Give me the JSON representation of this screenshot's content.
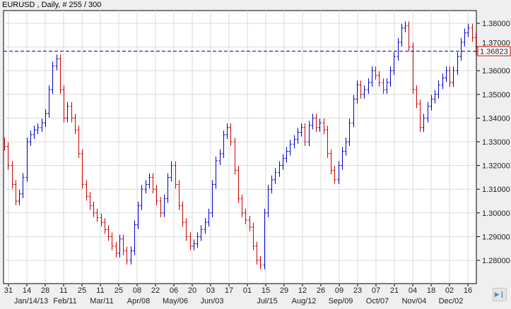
{
  "title": "EURUSD , Daily, # 255 / 300",
  "colors": {
    "up": "#0000cc",
    "down": "#cc0000",
    "current_line": "#0000aa",
    "grid": "#d8d8d8",
    "price_box_border": "#cc0000"
  },
  "nav_button_icon": "skip-to-end-icon",
  "chart_data": {
    "type": "ohlc",
    "symbol": "EURUSD",
    "timeframe": "Daily",
    "ylim": [
      1.272,
      1.384
    ],
    "y_ticks": [
      "1.38000",
      "1.37000",
      "1.36000",
      "1.35000",
      "1.34000",
      "1.33000",
      "1.32000",
      "1.31000",
      "1.30000",
      "1.29000",
      "1.28000"
    ],
    "y_tick_values": [
      1.38,
      1.37,
      1.36,
      1.35,
      1.34,
      1.33,
      1.32,
      1.31,
      1.3,
      1.29,
      1.28
    ],
    "x_ticks_top": [
      "31",
      "14",
      "28",
      "11",
      "25",
      "11",
      "25",
      "08",
      "22",
      "06",
      "20",
      "03",
      "17",
      "01",
      "15",
      "29",
      "12",
      "26",
      "09",
      "23",
      "07",
      "21",
      "04",
      "18",
      "02",
      "16"
    ],
    "x_ticks_bottom": [
      "Jan/14/13",
      "Feb/11",
      "Mar/11",
      "Apr/08",
      "May/06",
      "Jun/03",
      "Jul/15",
      "Aug/12",
      "Sep/09",
      "Oct/07",
      "Nov/04",
      "Dec/02"
    ],
    "current_price": 1.36823,
    "current_price_label": "1.36823",
    "grid": true,
    "closes": [
      1.328,
      1.32,
      1.312,
      1.305,
      1.308,
      1.315,
      1.33,
      1.333,
      1.335,
      1.336,
      1.338,
      1.342,
      1.352,
      1.362,
      1.365,
      1.352,
      1.34,
      1.345,
      1.34,
      1.335,
      1.325,
      1.312,
      1.307,
      1.303,
      1.3,
      1.298,
      1.296,
      1.293,
      1.29,
      1.286,
      1.283,
      1.289,
      1.284,
      1.28,
      1.284,
      1.295,
      1.303,
      1.31,
      1.312,
      1.315,
      1.31,
      1.305,
      1.3,
      1.306,
      1.315,
      1.32,
      1.312,
      1.303,
      1.296,
      1.29,
      1.286,
      1.287,
      1.29,
      1.293,
      1.296,
      1.3,
      1.312,
      1.322,
      1.325,
      1.333,
      1.336,
      1.33,
      1.318,
      1.306,
      1.3,
      1.297,
      1.294,
      1.286,
      1.28,
      1.278,
      1.3,
      1.31,
      1.314,
      1.317,
      1.32,
      1.323,
      1.326,
      1.329,
      1.331,
      1.334,
      1.336,
      1.33,
      1.337,
      1.34,
      1.336,
      1.338,
      1.335,
      1.325,
      1.318,
      1.314,
      1.32,
      1.326,
      1.33,
      1.338,
      1.348,
      1.354,
      1.35,
      1.352,
      1.355,
      1.36,
      1.358,
      1.355,
      1.352,
      1.355,
      1.36,
      1.366,
      1.372,
      1.378,
      1.379,
      1.37,
      1.352,
      1.346,
      1.336,
      1.34,
      1.345,
      1.348,
      1.35,
      1.354,
      1.357,
      1.36,
      1.355,
      1.36,
      1.366,
      1.372,
      1.376,
      1.378,
      1.374,
      1.36823
    ]
  }
}
